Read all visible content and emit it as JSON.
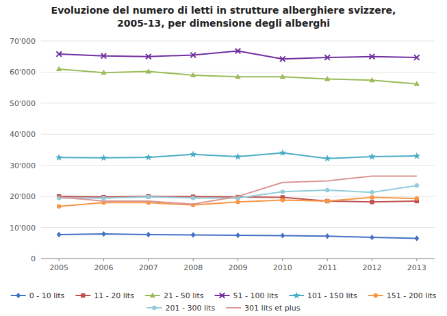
{
  "chart_data": {
    "type": "line",
    "title": "Evoluzione del numero di letti in strutture alberghiere svizzere,\n2005-13, per dimensione degli alberghi",
    "x": [
      2005,
      2006,
      2007,
      2008,
      2009,
      2010,
      2011,
      2012,
      2013
    ],
    "xlim": [
      2004.6,
      2013.4
    ],
    "xticks": [
      2005,
      2006,
      2007,
      2008,
      2009,
      2010,
      2011,
      2012,
      2013
    ],
    "ylim": [
      0,
      70000
    ],
    "yticks": [
      0,
      {
        "value": 10000,
        "label": "10'000"
      },
      {
        "value": 20000,
        "label": "20'000"
      },
      {
        "value": 30000,
        "label": "30'000"
      },
      {
        "value": 40000,
        "label": "40'000"
      },
      {
        "value": 50000,
        "label": "50'000"
      },
      {
        "value": 60000,
        "label": "60'000"
      },
      {
        "value": 70000,
        "label": "70'000"
      }
    ],
    "grid": true,
    "legend": "bottom",
    "series": [
      {
        "name": "0 - 10 lits",
        "color": "#4472C4",
        "marker": "diamond",
        "values": [
          7700,
          7900,
          7700,
          7600,
          7500,
          7400,
          7200,
          6800,
          6500
        ]
      },
      {
        "name": "11 - 20 lits",
        "color": "#C0504D",
        "marker": "square",
        "values": [
          20000,
          19800,
          20000,
          19900,
          19800,
          19700,
          18500,
          18200,
          18500
        ]
      },
      {
        "name": "21 - 50 lits",
        "color": "#9BBB59",
        "marker": "triangle",
        "values": [
          61000,
          59800,
          60200,
          59000,
          58500,
          58500,
          57800,
          57400,
          56200
        ]
      },
      {
        "name": "51 - 100 lits",
        "color": "#7030A0",
        "marker": "x",
        "values": [
          65800,
          65200,
          65000,
          65500,
          66800,
          64200,
          64700,
          65000,
          64700
        ]
      },
      {
        "name": "101 - 150 lits",
        "color": "#4BACC6",
        "marker": "star",
        "values": [
          32500,
          32400,
          32600,
          33500,
          32800,
          34000,
          32200,
          32800,
          33000
        ]
      },
      {
        "name": "151 - 200 lits",
        "color": "#F79646",
        "marker": "circle",
        "values": [
          16800,
          18000,
          18000,
          17200,
          18200,
          18800,
          18500,
          19700,
          19300
        ]
      },
      {
        "name": "201 - 300 lits",
        "color": "#92CDDC",
        "marker": "circle",
        "values": [
          19500,
          19500,
          19800,
          19500,
          19500,
          21500,
          22000,
          21300,
          23500
        ]
      },
      {
        "name": "301 lits et plus",
        "color": "#D99795",
        "marker": "none",
        "values": [
          19800,
          18500,
          18500,
          17500,
          20000,
          24500,
          25000,
          26500,
          26500
        ]
      }
    ]
  }
}
